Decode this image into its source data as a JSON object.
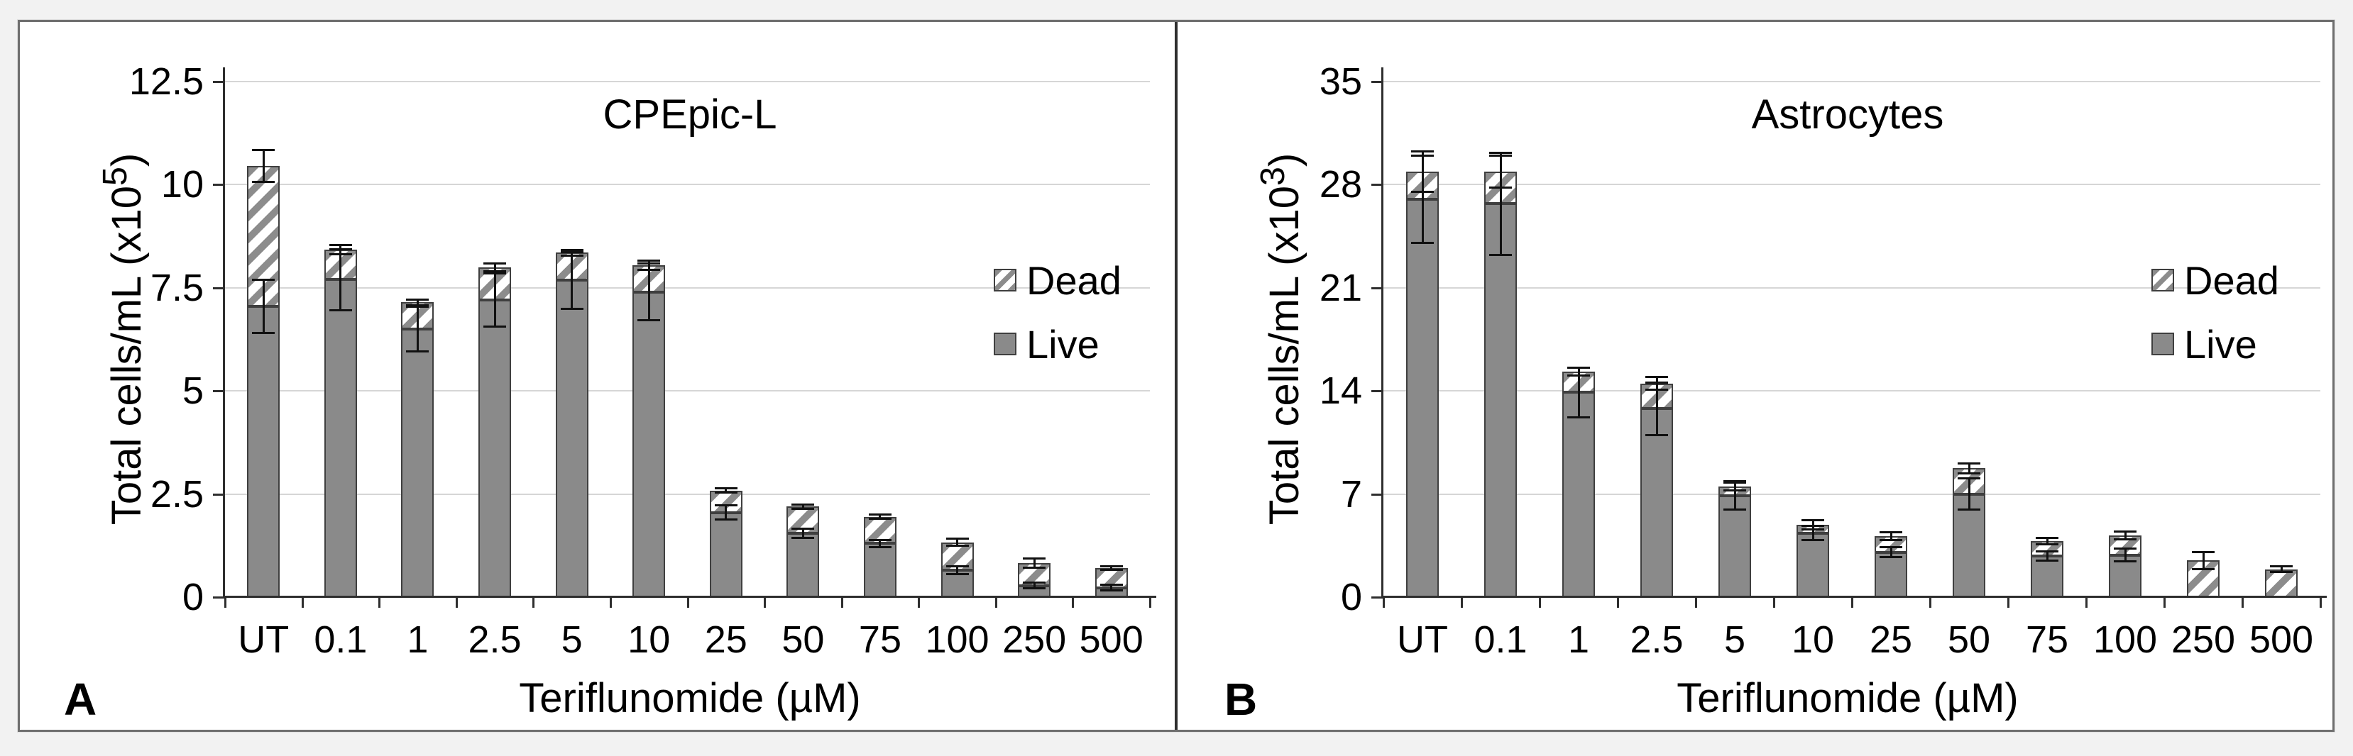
{
  "figure": {
    "kind": "two-panel stacked bar figure",
    "legend": [
      "Dead",
      "Live"
    ]
  },
  "colors": {
    "live_fill": "#8a8a8a",
    "hatch_stripe": "#8c8c8c",
    "bar_border": "#3f3f3f",
    "grid": "#d6d6d6",
    "axis": "#2e2e2e",
    "error": "#111111",
    "figure_border": "#6f6f6f",
    "background": "#ffffff",
    "page_background": "#f2f2f2"
  },
  "chart_data": [
    {
      "type": "bar",
      "stacked": true,
      "grid": true,
      "legend_position": "right-inside",
      "panel_label": "A",
      "title": "CPEpic-L",
      "xlabel": "Teriflunomide (µM)",
      "ylabel": "Total cells/mL (x10⁵)",
      "ylabel_pre": "Total cells/mL (x10",
      "ylabel_sup": "5",
      "ylabel_post": ")",
      "ylim": [
        0,
        12.5
      ],
      "yticks": [
        0,
        2.5,
        5,
        7.5,
        10,
        12.5
      ],
      "categories": [
        "UT",
        "0.1",
        "1",
        "2.5",
        "5",
        "10",
        "25",
        "50",
        "75",
        "100",
        "250",
        "500"
      ],
      "legend": [
        "Dead",
        "Live"
      ],
      "series": [
        {
          "name": "Live",
          "values": [
            7.05,
            7.7,
            6.5,
            7.2,
            7.68,
            7.4,
            2.05,
            1.55,
            1.3,
            0.65,
            0.28,
            0.23
          ],
          "errors": [
            0.65,
            0.75,
            0.55,
            0.65,
            0.7,
            0.7,
            0.18,
            0.12,
            0.1,
            0.1,
            0.08,
            0.08
          ]
        },
        {
          "name": "Dead",
          "values": [
            3.4,
            0.73,
            0.65,
            0.8,
            0.67,
            0.65,
            0.53,
            0.65,
            0.65,
            0.68,
            0.55,
            0.48
          ]
        }
      ],
      "totals": [
        10.45,
        8.43,
        7.15,
        8.0,
        8.35,
        8.05,
        2.58,
        2.2,
        1.95,
        1.33,
        0.83,
        0.71
      ],
      "total_errors": [
        0.4,
        0.12,
        0.08,
        0.1,
        0.08,
        0.12,
        0.06,
        0.06,
        0.06,
        0.1,
        0.12,
        0.05
      ]
    },
    {
      "type": "bar",
      "stacked": true,
      "grid": true,
      "legend_position": "right-inside",
      "panel_label": "B",
      "title": "Astrocytes",
      "xlabel": "Teriflunomide (µM)",
      "ylabel": "Total cells/mL (x10³)",
      "ylabel_pre": "Total cells/mL (x10",
      "ylabel_sup": "3",
      "ylabel_post": ")",
      "ylim": [
        0,
        35
      ],
      "yticks": [
        0,
        7,
        14,
        21,
        28,
        35
      ],
      "categories": [
        "UT",
        "0.1",
        "1",
        "2.5",
        "5",
        "10",
        "25",
        "50",
        "75",
        "100",
        "250",
        "500"
      ],
      "legend": [
        "Dead",
        "Live"
      ],
      "series": [
        {
          "name": "Live",
          "values": [
            27.0,
            26.7,
            13.9,
            12.8,
            6.9,
            4.35,
            3.05,
            7.0,
            2.8,
            2.85,
            0,
            0
          ],
          "errors": [
            3.0,
            3.5,
            1.7,
            1.8,
            1.0,
            0.5,
            0.35,
            1.1,
            0.35,
            0.45,
            0,
            0
          ]
        },
        {
          "name": "Dead",
          "values": [
            1.9,
            2.2,
            1.4,
            1.7,
            0.6,
            0.55,
            1.1,
            1.75,
            1.0,
            1.35,
            2.5,
            1.9
          ]
        }
      ],
      "totals": [
        28.9,
        28.9,
        15.3,
        14.5,
        7.5,
        4.9,
        4.15,
        8.75,
        3.8,
        4.2,
        2.5,
        1.9
      ],
      "total_errors": [
        1.4,
        1.1,
        0.3,
        0.45,
        0.3,
        0.35,
        0.3,
        0.35,
        0.25,
        0.3,
        0.6,
        0.2
      ]
    }
  ]
}
